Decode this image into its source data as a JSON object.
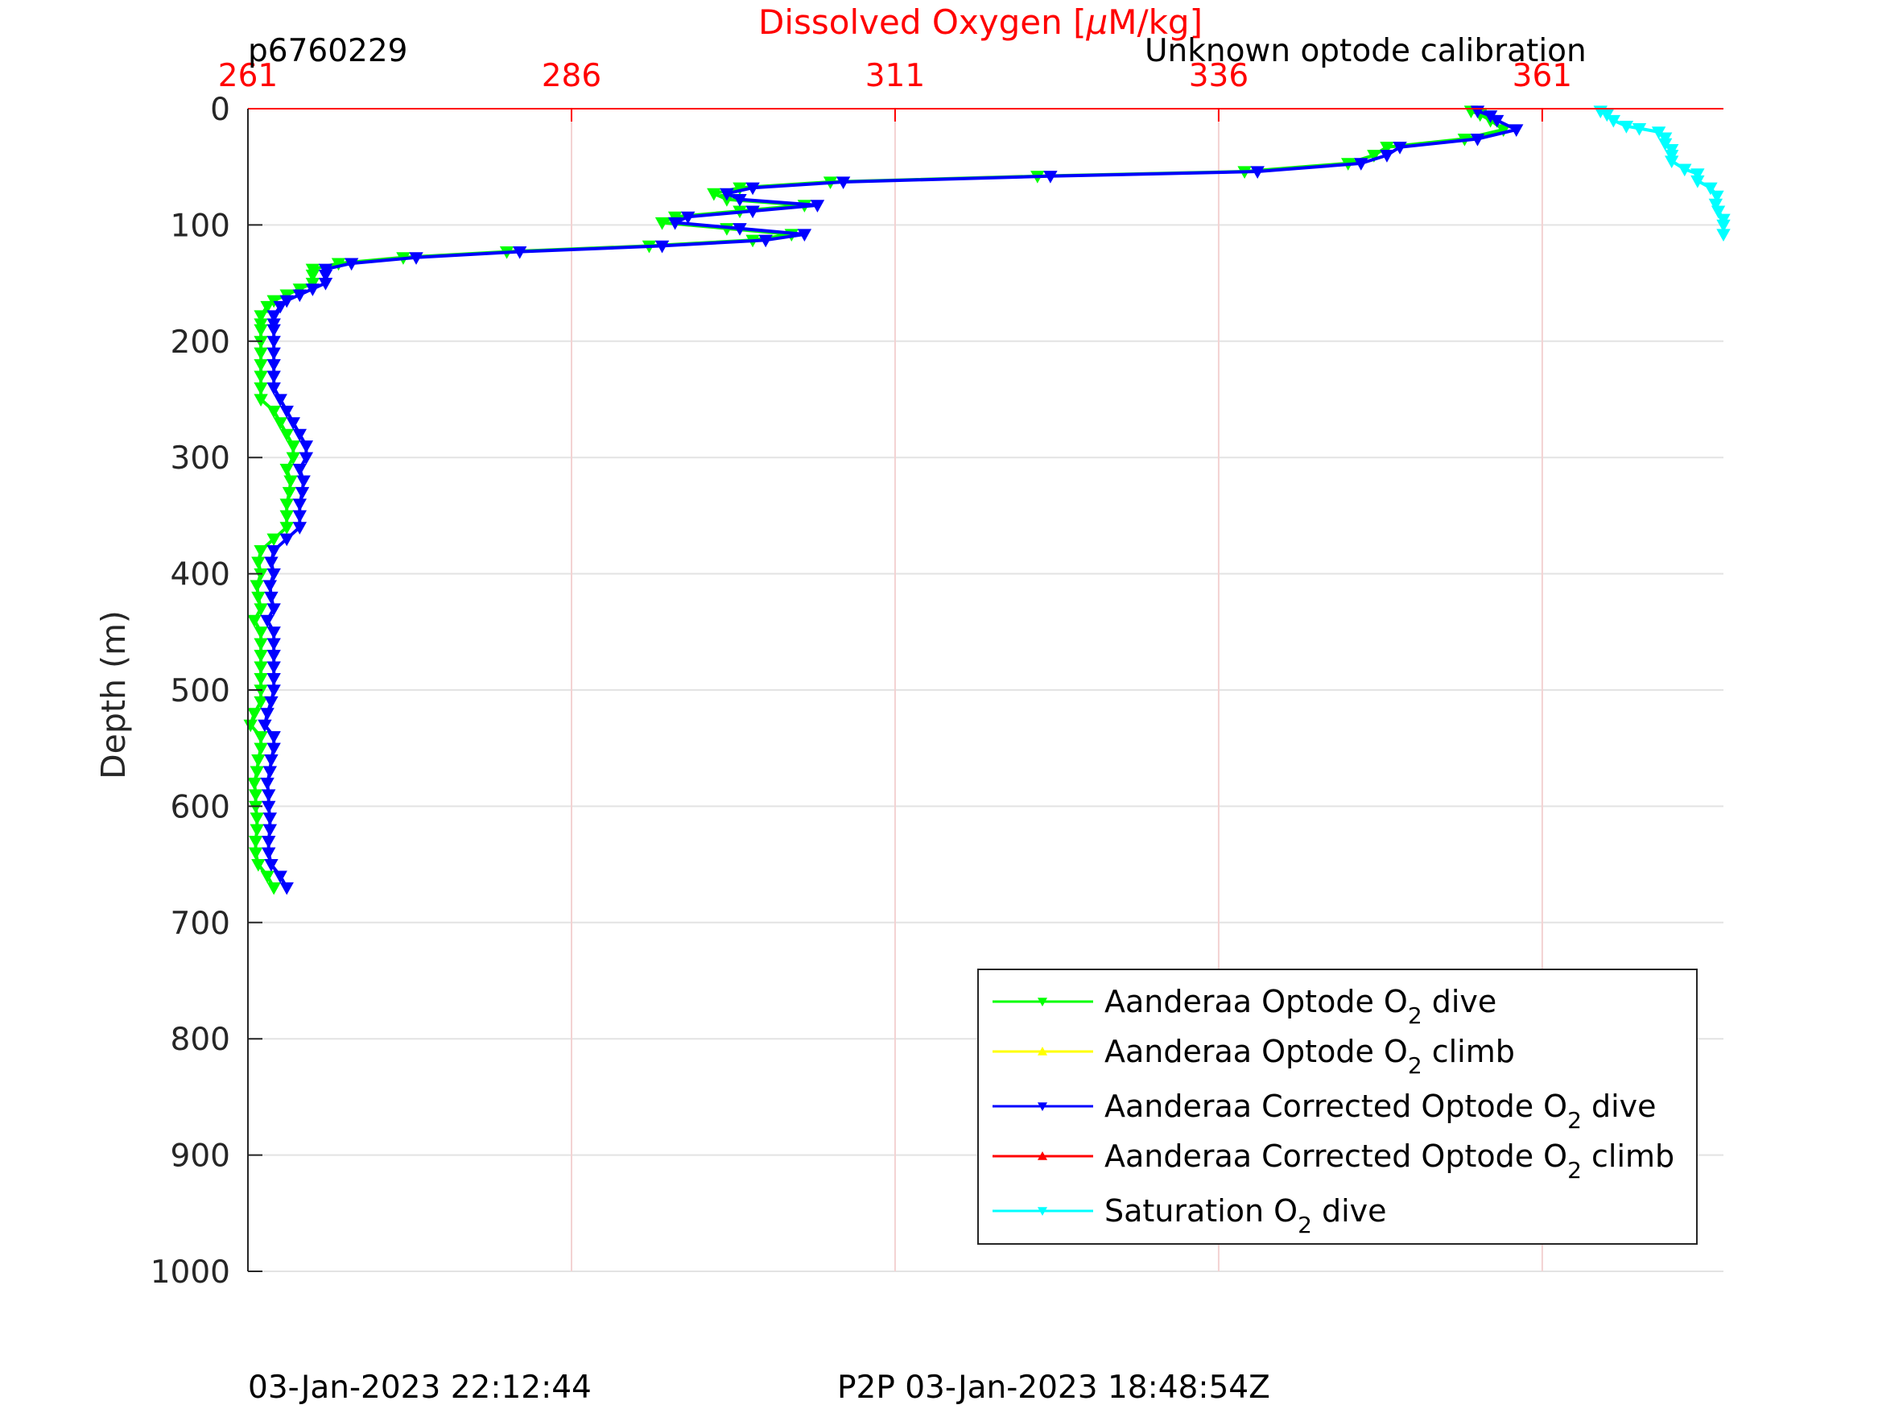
{
  "chart_data": {
    "type": "line",
    "title": "Dissolved Oxygen [μM/kg]",
    "xlabel": "Dissolved Oxygen [μM/kg]",
    "ylabel": "Depth (m)",
    "xlim": [
      261,
      375
    ],
    "ylim": [
      0,
      1000
    ],
    "y_reversed": true,
    "x_axis_position": "top",
    "x_ticks": [
      "261",
      "286",
      "311",
      "336",
      "361"
    ],
    "y_ticks": [
      "0",
      "100",
      "200",
      "300",
      "400",
      "500",
      "600",
      "700",
      "800",
      "900",
      "1000"
    ],
    "grid": true,
    "legend_position": "bottom-right",
    "series": [
      {
        "name": "Aanderaa Optode O2 dive",
        "color": "#00ff00",
        "marker": "triangle-down",
        "points": [
          [
            355.5,
            2
          ],
          [
            356.2,
            5
          ],
          [
            357,
            10
          ],
          [
            358,
            18
          ],
          [
            355,
            26
          ],
          [
            349,
            33
          ],
          [
            348,
            40
          ],
          [
            346,
            47
          ],
          [
            338,
            54
          ],
          [
            322,
            58
          ],
          [
            306,
            63
          ],
          [
            299,
            68
          ],
          [
            297,
            73
          ],
          [
            298,
            78
          ],
          [
            304,
            83
          ],
          [
            299,
            88
          ],
          [
            294,
            93
          ],
          [
            293,
            98
          ],
          [
            298,
            103
          ],
          [
            303,
            108
          ],
          [
            300,
            113
          ],
          [
            292,
            118
          ],
          [
            281,
            123
          ],
          [
            273,
            128
          ],
          [
            268,
            133
          ],
          [
            266,
            138
          ],
          [
            266,
            143
          ],
          [
            266,
            150
          ],
          [
            265,
            155
          ],
          [
            264,
            160
          ],
          [
            263,
            165
          ],
          [
            262.5,
            170
          ],
          [
            262,
            178
          ],
          [
            262,
            185
          ],
          [
            262,
            190
          ],
          [
            262,
            200
          ],
          [
            262,
            210
          ],
          [
            262,
            220
          ],
          [
            262,
            230
          ],
          [
            262,
            240
          ],
          [
            262,
            250
          ],
          [
            263,
            260
          ],
          [
            263.5,
            270
          ],
          [
            264,
            280
          ],
          [
            264.5,
            290
          ],
          [
            264.5,
            300
          ],
          [
            264,
            310
          ],
          [
            264.3,
            320
          ],
          [
            264.2,
            330
          ],
          [
            264,
            340
          ],
          [
            264,
            350
          ],
          [
            264,
            360
          ],
          [
            263,
            370
          ],
          [
            262,
            380
          ],
          [
            261.8,
            390
          ],
          [
            262,
            400
          ],
          [
            261.7,
            410
          ],
          [
            261.8,
            420
          ],
          [
            262,
            430
          ],
          [
            261.5,
            440
          ],
          [
            262,
            450
          ],
          [
            262,
            460
          ],
          [
            262,
            470
          ],
          [
            262,
            480
          ],
          [
            262,
            490
          ],
          [
            262,
            500
          ],
          [
            262,
            510
          ],
          [
            261.5,
            520
          ],
          [
            261.2,
            530
          ],
          [
            262,
            540
          ],
          [
            262,
            550
          ],
          [
            261.8,
            560
          ],
          [
            261.7,
            570
          ],
          [
            261.5,
            580
          ],
          [
            261.6,
            590
          ],
          [
            261.6,
            600
          ],
          [
            261.7,
            610
          ],
          [
            261.7,
            620
          ],
          [
            261.6,
            630
          ],
          [
            261.6,
            640
          ],
          [
            261.8,
            650
          ],
          [
            262.5,
            660
          ],
          [
            263,
            670
          ]
        ]
      },
      {
        "name": "Aanderaa Optode O2 climb",
        "color": "#ffff00",
        "marker": "triangle-up",
        "points": []
      },
      {
        "name": "Aanderaa Corrected Optode O2 dive",
        "color": "#0000ff",
        "marker": "triangle-down",
        "points": [
          [
            356,
            2
          ],
          [
            357,
            6
          ],
          [
            357.5,
            10
          ],
          [
            359,
            18
          ],
          [
            356,
            26
          ],
          [
            350,
            33
          ],
          [
            349,
            40
          ],
          [
            347,
            47
          ],
          [
            339,
            54
          ],
          [
            323,
            58
          ],
          [
            307,
            63
          ],
          [
            300,
            68
          ],
          [
            298,
            73
          ],
          [
            299,
            78
          ],
          [
            305,
            83
          ],
          [
            300,
            88
          ],
          [
            295,
            93
          ],
          [
            294,
            98
          ],
          [
            299,
            103
          ],
          [
            304,
            108
          ],
          [
            301,
            113
          ],
          [
            293,
            118
          ],
          [
            282,
            123
          ],
          [
            274,
            128
          ],
          [
            269,
            133
          ],
          [
            267,
            138
          ],
          [
            267,
            143
          ],
          [
            267,
            150
          ],
          [
            266,
            155
          ],
          [
            265,
            160
          ],
          [
            264,
            165
          ],
          [
            263.5,
            170
          ],
          [
            263,
            178
          ],
          [
            263,
            185
          ],
          [
            263,
            190
          ],
          [
            263,
            200
          ],
          [
            263,
            210
          ],
          [
            263,
            220
          ],
          [
            263,
            230
          ],
          [
            263,
            240
          ],
          [
            263.5,
            250
          ],
          [
            264,
            260
          ],
          [
            264.5,
            270
          ],
          [
            265,
            280
          ],
          [
            265.5,
            290
          ],
          [
            265.5,
            300
          ],
          [
            265,
            310
          ],
          [
            265.3,
            320
          ],
          [
            265.2,
            330
          ],
          [
            265,
            340
          ],
          [
            265,
            350
          ],
          [
            265,
            360
          ],
          [
            264,
            370
          ],
          [
            263,
            380
          ],
          [
            262.8,
            390
          ],
          [
            263,
            400
          ],
          [
            262.7,
            410
          ],
          [
            262.8,
            420
          ],
          [
            263,
            430
          ],
          [
            262.5,
            440
          ],
          [
            263,
            450
          ],
          [
            263,
            460
          ],
          [
            263,
            470
          ],
          [
            263,
            480
          ],
          [
            263,
            490
          ],
          [
            263,
            500
          ],
          [
            262.8,
            510
          ],
          [
            262.5,
            520
          ],
          [
            262.3,
            530
          ],
          [
            263,
            540
          ],
          [
            263,
            550
          ],
          [
            262.8,
            560
          ],
          [
            262.7,
            570
          ],
          [
            262.5,
            580
          ],
          [
            262.6,
            590
          ],
          [
            262.6,
            600
          ],
          [
            262.7,
            610
          ],
          [
            262.7,
            620
          ],
          [
            262.6,
            630
          ],
          [
            262.6,
            640
          ],
          [
            262.8,
            650
          ],
          [
            263.5,
            660
          ],
          [
            264,
            670
          ]
        ]
      },
      {
        "name": "Aanderaa Corrected Optode O2 climb",
        "color": "#ff0000",
        "marker": "triangle-up",
        "points": []
      },
      {
        "name": "Saturation O2 dive",
        "color": "#00ffff",
        "marker": "triangle-down",
        "points": [
          [
            365.5,
            2
          ],
          [
            366,
            5
          ],
          [
            366.5,
            10
          ],
          [
            367.5,
            15
          ],
          [
            368.5,
            17
          ],
          [
            370,
            20
          ],
          [
            370.5,
            25
          ],
          [
            370.5,
            30
          ],
          [
            371,
            35
          ],
          [
            371,
            40
          ],
          [
            371,
            45
          ],
          [
            372,
            52
          ],
          [
            373,
            56
          ],
          [
            373,
            62
          ],
          [
            374,
            68
          ],
          [
            374.5,
            75
          ],
          [
            374.4,
            82
          ],
          [
            374.6,
            88
          ],
          [
            375,
            95
          ],
          [
            375,
            100
          ],
          [
            375,
            108
          ]
        ]
      }
    ],
    "legend_entries": [
      {
        "prefix": "Aanderaa Optode O",
        "sub": "2",
        "suffix": " dive",
        "color": "#00ff00"
      },
      {
        "prefix": "Aanderaa Optode O",
        "sub": "2",
        "suffix": " climb",
        "color": "#ffff00"
      },
      {
        "prefix": "Aanderaa Corrected Optode O",
        "sub": "2",
        "suffix": " dive",
        "color": "#0000ff"
      },
      {
        "prefix": "Aanderaa Corrected Optode O",
        "sub": "2",
        "suffix": " climb",
        "color": "#ff0000"
      },
      {
        "prefix": "Saturation O",
        "sub": "2",
        "suffix": " dive",
        "color": "#00ffff"
      }
    ]
  },
  "header": {
    "title_prefix": "Dissolved Oxygen [",
    "title_mu": "μ",
    "title_suffix": "M/kg]",
    "float_id": "p6760229",
    "calibration_note": "Unknown optode calibration",
    "title_color": "#ff0000"
  },
  "footer": {
    "left_timestamp": "03-Jan-2023 22:12:44",
    "right_timestamp": "P2P 03-Jan-2023 18:48:54Z"
  }
}
